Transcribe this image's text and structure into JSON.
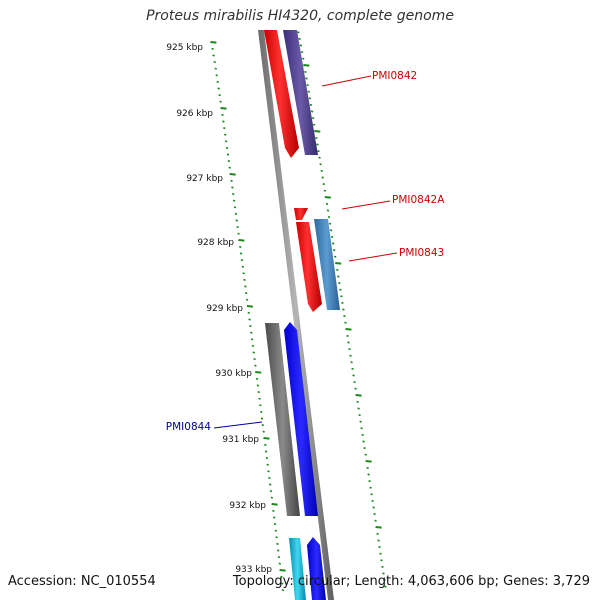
{
  "title": "Proteus mirabilis HI4320, complete genome",
  "accession": "Accession: NC_010554",
  "stats": "Topology: circular; Length: 4,063,606 bp; Genes: 3,729",
  "ruler": {
    "labels": [
      "925 kbp",
      "926 kbp",
      "927 kbp",
      "928 kbp",
      "929 kbp",
      "930 kbp",
      "931 kbp",
      "932 kbp",
      "933 kbp"
    ]
  },
  "genes": [
    {
      "name": "PMI0842",
      "color": "#cc0000"
    },
    {
      "name": "PMI0842A",
      "color": "#cc0000"
    },
    {
      "name": "PMI0843",
      "color": "#cc0000"
    },
    {
      "name": "PMI0844",
      "color": "#000099"
    }
  ],
  "colors": {
    "ruler": "#1a8a1a",
    "backbone": "#8c8c8c",
    "feature_red": "#ff0000",
    "feature_purple": "#4a3b8c",
    "feature_steel": "#3d7eb5",
    "feature_gray": "#666666",
    "feature_blue": "#0000ee",
    "feature_cyan": "#00b4d8"
  }
}
